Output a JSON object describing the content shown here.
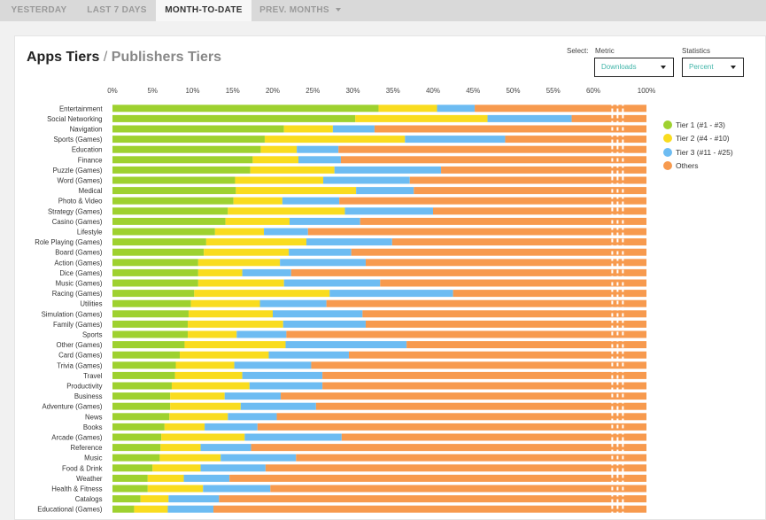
{
  "tabs": [
    {
      "label": "YESTERDAY"
    },
    {
      "label": "LAST 7 DAYS"
    },
    {
      "label": "MONTH-TO-DATE"
    },
    {
      "label": "PREV. MONTHS"
    }
  ],
  "header": {
    "title_main": "Apps Tiers",
    "title_sep": "/",
    "title_alt": "Publishers Tiers"
  },
  "controls": {
    "select_label": "Select:",
    "metric_label": "Metric",
    "metric_value": "Downloads",
    "stats_label": "Statistics",
    "stats_value": "Percent"
  },
  "chart_data": {
    "type": "bar",
    "orientation": "horizontal",
    "stacked": true,
    "title": "",
    "xlabel": "",
    "ylabel": "",
    "xlim": [
      0,
      100
    ],
    "x_ticks": [
      "0%",
      "5%",
      "10%",
      "15%",
      "20%",
      "25%",
      "30%",
      "35%",
      "40%",
      "45%",
      "50%",
      "55%",
      "60%",
      "100%"
    ],
    "axis_break": true,
    "grid": false,
    "legend_position": "right",
    "categories": [
      "Entertainment",
      "Social Networking",
      "Navigation",
      "Sports (Games)",
      "Education",
      "Finance",
      "Puzzle (Games)",
      "Word (Games)",
      "Medical",
      "Photo & Video",
      "Strategy (Games)",
      "Casino (Games)",
      "Lifestyle",
      "Role Playing (Games)",
      "Board (Games)",
      "Action (Games)",
      "Dice (Games)",
      "Music (Games)",
      "Racing (Games)",
      "Utilities",
      "Simulation (Games)",
      "Family (Games)",
      "Sports",
      "Other (Games)",
      "Card (Games)",
      "Trivia (Games)",
      "Travel",
      "Productivity",
      "Business",
      "Adventure (Games)",
      "News",
      "Books",
      "Arcade (Games)",
      "Reference",
      "Music",
      "Food & Drink",
      "Weather",
      "Health & Fitness",
      "Catalogs",
      "Educational (Games)"
    ],
    "series": [
      {
        "name": "Tier 1 (#1 - #3)",
        "color": "#9ed12f",
        "values": [
          33.2,
          30.3,
          21.4,
          19.0,
          18.5,
          17.5,
          17.2,
          15.3,
          15.4,
          15.1,
          14.4,
          14.1,
          12.8,
          11.7,
          11.4,
          10.7,
          10.7,
          10.7,
          10.2,
          9.8,
          9.5,
          9.4,
          9.4,
          9.0,
          8.4,
          7.9,
          7.8,
          7.4,
          7.2,
          7.2,
          7.1,
          6.5,
          6.1,
          6.0,
          5.9,
          5.0,
          4.4,
          4.4,
          3.5,
          2.7
        ]
      },
      {
        "name": "Tier 2 (#4 - #10)",
        "color": "#f9dc1f",
        "values": [
          7.3,
          16.5,
          6.1,
          17.5,
          4.5,
          5.7,
          10.5,
          11.0,
          15.0,
          6.1,
          14.6,
          8.0,
          6.1,
          12.5,
          10.6,
          10.2,
          5.5,
          10.7,
          16.9,
          8.6,
          10.5,
          11.9,
          6.1,
          12.6,
          11.1,
          7.3,
          8.4,
          9.7,
          6.8,
          8.8,
          7.3,
          5.0,
          10.4,
          5.0,
          7.6,
          6.0,
          4.5,
          6.9,
          3.5,
          4.2
        ]
      },
      {
        "name": "Tier 3 (#11 - #25)",
        "color": "#6dbcf2",
        "values": [
          4.7,
          10.5,
          5.2,
          12.5,
          5.2,
          5.3,
          13.3,
          10.8,
          7.2,
          7.1,
          11.0,
          8.8,
          5.5,
          10.7,
          7.8,
          10.7,
          6.1,
          12.0,
          15.4,
          8.3,
          11.2,
          10.3,
          6.2,
          15.1,
          10.0,
          9.6,
          10.0,
          9.1,
          7.0,
          9.4,
          6.1,
          6.6,
          12.1,
          6.3,
          9.4,
          8.1,
          5.7,
          8.4,
          6.3,
          5.7
        ]
      },
      {
        "name": "Others",
        "color": "#f79a4e",
        "values": [
          54.8,
          42.7,
          67.3,
          51.0,
          71.8,
          71.5,
          59.0,
          62.9,
          62.4,
          71.7,
          60.0,
          69.1,
          75.6,
          65.1,
          70.2,
          68.4,
          77.7,
          66.6,
          57.5,
          73.3,
          68.8,
          68.4,
          78.3,
          63.3,
          70.5,
          75.2,
          73.8,
          73.8,
          79.0,
          74.6,
          79.5,
          81.9,
          71.4,
          82.7,
          77.1,
          80.9,
          85.4,
          80.3,
          86.7,
          87.4
        ]
      }
    ]
  }
}
